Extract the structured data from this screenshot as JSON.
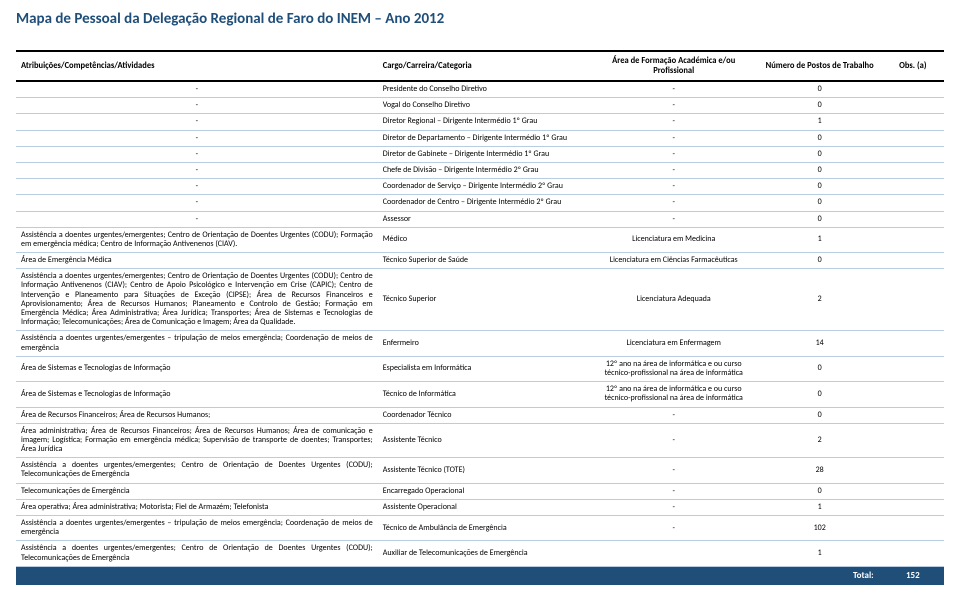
{
  "title": "Mapa de Pessoal da Delegação Regional de Faro do INEM – Ano 2012",
  "headers": {
    "atrib": "Atribuições/Competências/Atividades",
    "cargo": "Cargo/Carreira/Categoria",
    "area": "Área de Formação Académica e/ou Profissional",
    "num": "Número de Postos de Trabalho",
    "obs": "Obs. (a)"
  },
  "rows": [
    {
      "atrib": "-",
      "cargo": "Presidente do Conselho Diretivo",
      "area": "-",
      "num": "0",
      "obs": ""
    },
    {
      "atrib": "-",
      "cargo": "Vogal do Conselho Diretivo",
      "area": "-",
      "num": "0",
      "obs": ""
    },
    {
      "atrib": "-",
      "cargo": "Diretor Regional – Dirigente Intermédio 1º Grau",
      "area": "-",
      "num": "1",
      "obs": ""
    },
    {
      "atrib": "-",
      "cargo": "Diretor de Departamento – Dirigente Intermédio 1º Grau",
      "area": "-",
      "num": "0",
      "obs": ""
    },
    {
      "atrib": "-",
      "cargo": "Diretor de Gabinete – Dirigente Intermédio 1º Grau",
      "area": "-",
      "num": "0",
      "obs": ""
    },
    {
      "atrib": "-",
      "cargo": "Chefe de Divisão – Dirigente Intermédio 2º Grau",
      "area": "-",
      "num": "0",
      "obs": ""
    },
    {
      "atrib": "-",
      "cargo": "Coordenador de Serviço – Dirigente Intermédio 2º Grau",
      "area": "-",
      "num": "0",
      "obs": ""
    },
    {
      "atrib": "-",
      "cargo": "Coordenador de Centro – Dirigente Intermédio 2º Grau",
      "area": "-",
      "num": "0",
      "obs": ""
    },
    {
      "atrib": "-",
      "cargo": "Assessor",
      "area": "-",
      "num": "0",
      "obs": ""
    },
    {
      "atrib": "Assistência a doentes urgentes/emergentes; Centro de Orientação de Doentes Urgentes (CODU); Formação em emergência médica; Centro de Informação Antivenenos (CIAV).",
      "cargo": "Médico",
      "area": "Licenciatura em Medicina",
      "num": "1",
      "obs": ""
    },
    {
      "atrib": "Área de Emergência Médica",
      "cargo": "Técnico Superior de Saúde",
      "area": "Licenciatura em Ciências Farmacêuticas",
      "num": "0",
      "obs": ""
    },
    {
      "atrib": "Assistência a doentes urgentes/emergentes; Centro de Orientação de Doentes Urgentes (CODU); Centro de Informação Antivenenos (CIAV); Centro de Apoio Psicológico e Intervenção em Crise (CAPIC); Centro de Intervenção e Planeamento para Situações de Exceção (CIPSE); Área de Recursos Financeiros e Aprovisionamento; Área de Recursos Humanos; Planeamento e Controlo de Gestão; Formação em Emergência Médica; Área Administrativa; Área Jurídica; Transportes; Área de Sistemas e Tecnologias de Informação; Telecomunicações; Área de Comunicação e Imagem; Área da Qualidade.",
      "cargo": "Técnico Superior",
      "area": "Licenciatura Adequada",
      "num": "2",
      "obs": ""
    },
    {
      "atrib": "Assistência a doentes urgentes/emergentes – tripulação de meios emergência; Coordenação de meios de emergência",
      "cargo": "Enfermeiro",
      "area": "Licenciatura em Enfermagem",
      "num": "14",
      "obs": ""
    },
    {
      "atrib": "Área de Sistemas e Tecnologias de Informação",
      "cargo": "Especialista em Informática",
      "area": "12º ano na área de informática e ou curso técnico-profissional na área de informática",
      "num": "0",
      "obs": ""
    },
    {
      "atrib": "Área de Sistemas e Tecnologias de Informação",
      "cargo": "Técnico de Informática",
      "area": "12º ano na área de informática e ou curso técnico-profissional na área de informática",
      "num": "0",
      "obs": ""
    },
    {
      "atrib": "Área de Recursos Financeiros; Área de Recursos Humanos;",
      "cargo": "Coordenador Técnico",
      "area": "-",
      "num": "0",
      "obs": ""
    },
    {
      "atrib": "Área administrativa; Área de Recursos Financeiros; Área de Recursos Humanos; Área de comunicação e imagem; Logística; Formação em emergência médica; Supervisão de transporte de doentes; Transportes; Área Jurídica",
      "cargo": "Assistente Técnico",
      "area": "-",
      "num": "2",
      "obs": ""
    },
    {
      "atrib": "Assistência a doentes urgentes/emergentes; Centro de Orientação de Doentes Urgentes (CODU); Telecomunicações de Emergência",
      "cargo": "Assistente Técnico (TOTE)",
      "area": "-",
      "num": "28",
      "obs": ""
    },
    {
      "atrib": "Telecomunicações de Emergência",
      "cargo": "Encarregado Operacional",
      "area": "-",
      "num": "0",
      "obs": ""
    },
    {
      "atrib": "Área operativa; Área administrativa; Motorista; Fiel de Armazém; Telefonista",
      "cargo": "Assistente Operacional",
      "area": "-",
      "num": "1",
      "obs": ""
    },
    {
      "atrib": "Assistência a doentes urgentes/emergentes – tripulação de meios emergência; Coordenação de meios de emergência",
      "cargo": "Técnico de Ambulância de Emergência",
      "area": "-",
      "num": "102",
      "obs": ""
    },
    {
      "atrib": "Assistência a doentes urgentes/emergentes; Centro de Orientação de Doentes Urgentes (CODU); Telecomunicações de Emergência",
      "cargo": "Auxiliar de Telecomunicações de Emergência",
      "area": "",
      "num": "1",
      "obs": ""
    }
  ],
  "total": {
    "label": "Total:",
    "value": "152"
  }
}
